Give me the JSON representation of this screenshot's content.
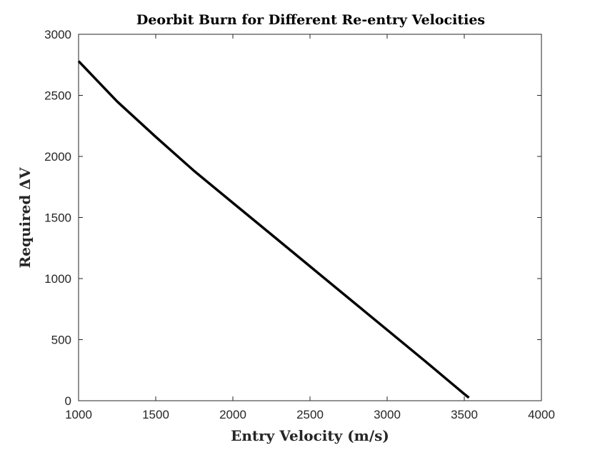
{
  "chart_data": {
    "type": "line",
    "title": "Deorbit Burn for Different Re-entry Velocities",
    "xlabel": "Entry Velocity (m/s)",
    "ylabel": "Required ΔV",
    "xlim": [
      1000,
      4000
    ],
    "ylim": [
      0,
      3000
    ],
    "xticks": [
      "1000",
      "1500",
      "2000",
      "2500",
      "3000",
      "3500",
      "4000"
    ],
    "yticks": [
      "0",
      "500",
      "1000",
      "1500",
      "2000",
      "2500",
      "3000"
    ],
    "grid": false,
    "legend": "none",
    "series": [
      {
        "color": "#000000",
        "x": [
          1000,
          1250,
          1500,
          1750,
          2000,
          2250,
          2500,
          2750,
          3000,
          3250,
          3500,
          3530
        ],
        "y": [
          2780,
          2450,
          2160,
          1880,
          1620,
          1360,
          1100,
          840,
          580,
          320,
          55,
          25
        ]
      }
    ]
  }
}
